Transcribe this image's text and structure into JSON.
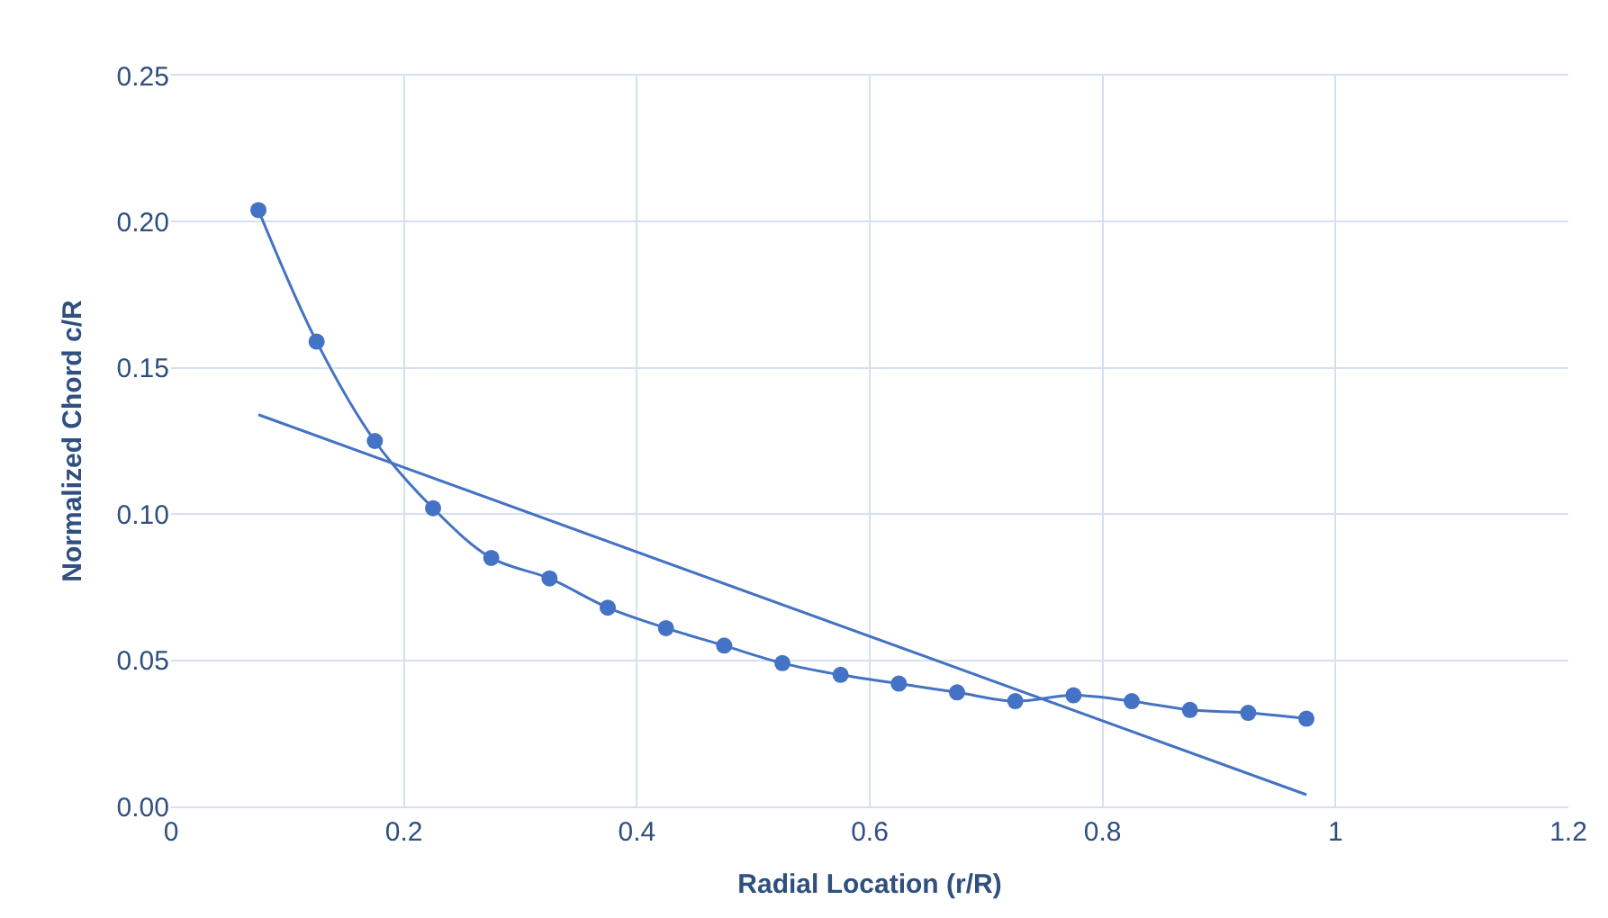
{
  "chart_data": {
    "type": "line",
    "xlabel": "Radial Location (r/R)",
    "ylabel": "Normalized Chord c/R",
    "xlim": [
      0,
      1.2
    ],
    "xticks": [
      0,
      0.2,
      0.4,
      0.6,
      0.8,
      1,
      1.2
    ],
    "ylim": [
      0,
      0.25
    ],
    "yticks": [
      {
        "value": 0,
        "label": "0.00"
      },
      {
        "value": 0.05,
        "label": "0.05"
      },
      {
        "value": 0.1,
        "label": "0.10"
      },
      {
        "value": 0.15,
        "label": "0.15"
      },
      {
        "value": 0.2,
        "label": "0.20"
      },
      {
        "value": 0.25,
        "label": "0.25"
      }
    ],
    "grid": true,
    "legend": false,
    "series": [
      {
        "marker": "circle",
        "color": "#4472c4",
        "x": [
          0.075,
          0.125,
          0.175,
          0.225,
          0.275,
          0.325,
          0.375,
          0.425,
          0.475,
          0.525,
          0.575,
          0.625,
          0.675,
          0.725,
          0.775,
          0.825,
          0.875,
          0.925,
          0.975
        ],
        "values": [
          0.204,
          0.159,
          0.125,
          0.102,
          0.085,
          0.078,
          0.068,
          0.061,
          0.055,
          0.049,
          0.045,
          0.042,
          0.039,
          0.036,
          0.038,
          0.036,
          0.033,
          0.032,
          0.03
        ]
      },
      {
        "marker": "none",
        "color": "#4472c4",
        "x": [
          0.075,
          0.975
        ],
        "values": [
          0.134,
          0.004
        ]
      }
    ]
  }
}
